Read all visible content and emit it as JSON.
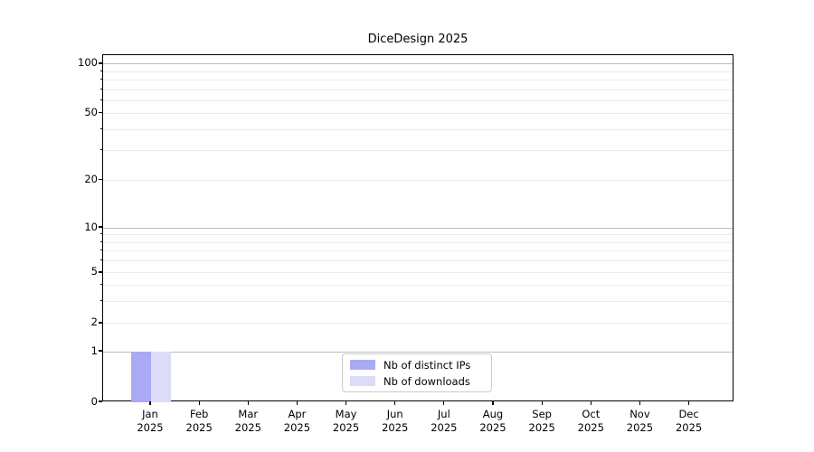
{
  "title": "DiceDesign 2025",
  "chart_data": {
    "type": "bar",
    "title": "DiceDesign 2025",
    "categories": [
      "Jan",
      "Feb",
      "Mar",
      "Apr",
      "May",
      "Jun",
      "Jul",
      "Aug",
      "Sep",
      "Oct",
      "Nov",
      "Dec"
    ],
    "category_sublabel": "2025",
    "series": [
      {
        "name": "Nb of distinct IPs",
        "color": "#aaaaf4",
        "values": [
          1,
          0,
          0,
          0,
          0,
          0,
          0,
          0,
          0,
          0,
          0,
          0
        ]
      },
      {
        "name": "Nb of downloads",
        "color": "#dcdcf8",
        "values": [
          1,
          0,
          0,
          0,
          0,
          0,
          0,
          0,
          0,
          0,
          0,
          0
        ]
      }
    ],
    "xlabel": "",
    "ylabel": "",
    "yscale": "symlog",
    "ylim": [
      0,
      120
    ],
    "y_tick_values": [
      0,
      1,
      2,
      5,
      10,
      20,
      50,
      100
    ],
    "y_tick_labels": [
      "0",
      "1",
      "2",
      "5",
      "10",
      "20",
      "50",
      "100"
    ],
    "y_major_values": [
      1,
      10,
      100
    ],
    "y_minor_unlabeled_values": [
      3,
      4,
      6,
      7,
      8,
      9,
      30,
      40,
      60,
      70,
      80,
      90
    ],
    "grid": "both",
    "legend_position": "lower center"
  },
  "colors": {
    "major_grid": "#bdbdbd",
    "minor_grid": "#ececec",
    "axis": "#000000",
    "background": "#ffffff"
  }
}
